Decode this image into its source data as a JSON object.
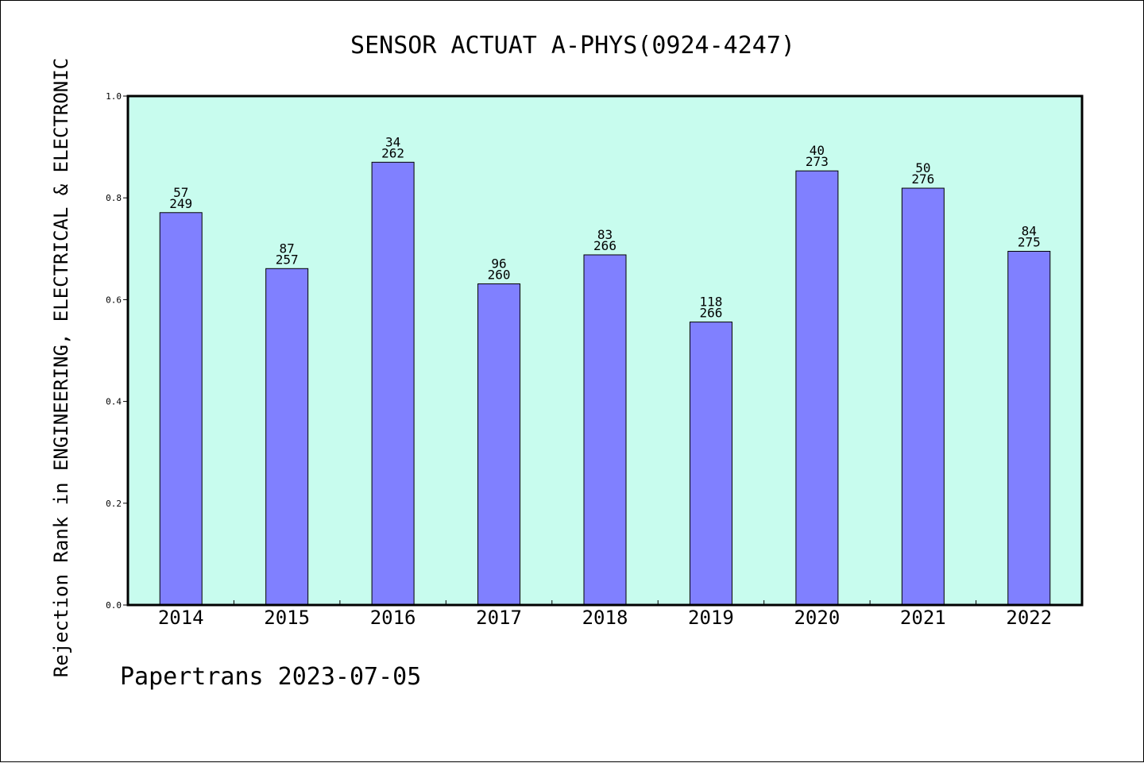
{
  "chart_data": {
    "type": "bar",
    "title": "SENSOR ACTUAT A-PHYS(0924-4247)",
    "xlabel": "",
    "ylabel": "Rejection Rank in ENGINEERING, ELECTRICAL & ELECTRONIC",
    "ylim": [
      0,
      1.0
    ],
    "yticks": [
      "0.0",
      "0.2",
      "0.4",
      "0.6",
      "0.8",
      "1.0"
    ],
    "grid": false,
    "categories": [
      "2014",
      "2015",
      "2016",
      "2017",
      "2018",
      "2019",
      "2020",
      "2021",
      "2022"
    ],
    "values": [
      0.771,
      0.661,
      0.87,
      0.631,
      0.688,
      0.556,
      0.853,
      0.819,
      0.695
    ],
    "rank_labels": [
      "57",
      "87",
      "34",
      "96",
      "83",
      "118",
      "40",
      "50",
      "84"
    ],
    "total_labels": [
      "249",
      "257",
      "262",
      "260",
      "266",
      "266",
      "273",
      "276",
      "275"
    ],
    "colors": {
      "bar": "#8080ff",
      "plot_background": "#c8fcee",
      "axes": "#000000"
    }
  },
  "footer": {
    "credit": "Papertrans 2023-07-05"
  }
}
